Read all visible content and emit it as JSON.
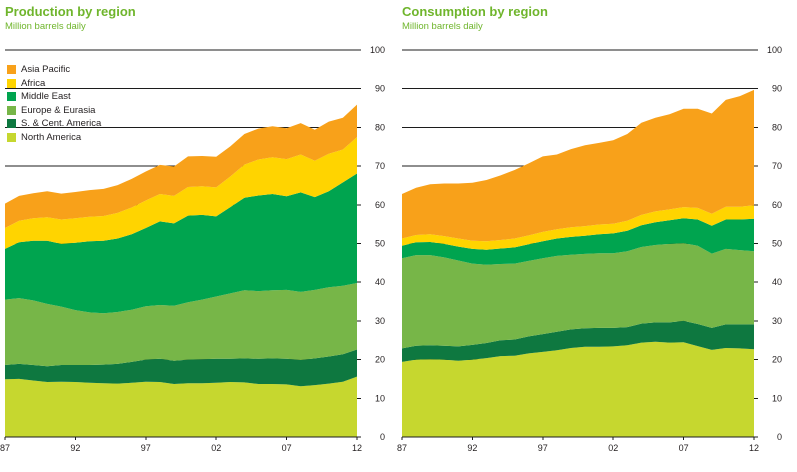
{
  "theme": {
    "title_color": "#6fb52c",
    "grid_color": "#1c1c1c",
    "tick_text_color": "#231f20",
    "background": "#ffffff"
  },
  "regions": [
    {
      "id": "north-america",
      "label": "North America",
      "color": "#c6d72f"
    },
    {
      "id": "s-cent-america",
      "label": "S. & Cent. America",
      "color": "#0e7840"
    },
    {
      "id": "europe-eurasia",
      "label": "Europe & Eurasia",
      "color": "#77b648"
    },
    {
      "id": "middle-east",
      "label": "Middle East",
      "color": "#00a44f"
    },
    {
      "id": "africa",
      "label": "Africa",
      "color": "#ffd400"
    },
    {
      "id": "asia-pacific",
      "label": "Asia Pacific",
      "color": "#f8a11a"
    }
  ],
  "legend": {
    "position": "top-left of production chart only",
    "items": [
      {
        "label": "Asia Pacific",
        "color": "#f8a11a"
      },
      {
        "label": "Africa",
        "color": "#ffd400"
      },
      {
        "label": "Middle East",
        "color": "#00a44f"
      },
      {
        "label": "Europe & Eurasia",
        "color": "#77b648"
      },
      {
        "label": "S. & Cent. America",
        "color": "#0e7840"
      },
      {
        "label": "North America",
        "color": "#c6d72f"
      }
    ]
  },
  "chart_data": [
    {
      "type": "area",
      "stacked": true,
      "title": "Production by region",
      "subtitle": "Million barrels daily",
      "ylim": [
        0,
        100
      ],
      "ytick_step": 10,
      "grid": true,
      "y_axis_side": "right",
      "xtick_years": [
        1987,
        1992,
        1997,
        2002,
        2007,
        2012
      ],
      "xtick_labels": [
        "87",
        "92",
        "97",
        "02",
        "07",
        "12"
      ],
      "x_years": [
        1987,
        1988,
        1989,
        1990,
        1991,
        1992,
        1993,
        1994,
        1995,
        1996,
        1997,
        1998,
        1999,
        2000,
        2001,
        2002,
        2003,
        2004,
        2005,
        2006,
        2007,
        2008,
        2009,
        2010,
        2011,
        2012
      ],
      "stack_order": "bottom to top: North America, S. & Cent. America, Europe & Eurasia, Middle East, Africa, Asia Pacific",
      "series": [
        {
          "name": "North America",
          "values": [
            14.9,
            15.0,
            14.6,
            14.2,
            14.3,
            14.2,
            14.0,
            13.9,
            13.8,
            14.0,
            14.3,
            14.2,
            13.7,
            13.9,
            13.9,
            14.0,
            14.2,
            14.1,
            13.7,
            13.7,
            13.6,
            13.1,
            13.4,
            13.8,
            14.3,
            15.6
          ]
        },
        {
          "name": "S. & Cent. America",
          "values": [
            3.7,
            3.9,
            4.0,
            4.1,
            4.3,
            4.4,
            4.6,
            4.8,
            5.1,
            5.4,
            5.7,
            6.0,
            6.0,
            6.1,
            6.2,
            6.2,
            6.0,
            6.2,
            6.5,
            6.6,
            6.6,
            6.8,
            6.9,
            7.0,
            7.1,
            7.0
          ]
        },
        {
          "name": "Europe & Eurasia",
          "values": [
            16.9,
            17.0,
            16.7,
            16.1,
            15.1,
            14.2,
            13.6,
            13.3,
            13.4,
            13.5,
            13.8,
            13.9,
            14.2,
            14.8,
            15.4,
            16.1,
            16.9,
            17.6,
            17.5,
            17.6,
            17.8,
            17.6,
            17.7,
            17.9,
            17.7,
            17.2
          ]
        },
        {
          "name": "Middle East",
          "values": [
            13.1,
            14.4,
            15.4,
            16.3,
            16.2,
            17.4,
            18.4,
            18.7,
            19.0,
            19.5,
            20.2,
            21.6,
            21.3,
            22.4,
            21.9,
            20.7,
            22.3,
            23.9,
            24.7,
            24.9,
            24.2,
            25.7,
            24.0,
            24.8,
            26.7,
            28.3
          ]
        },
        {
          "name": "Africa",
          "values": [
            5.4,
            5.6,
            5.8,
            6.1,
            6.3,
            6.3,
            6.3,
            6.4,
            6.6,
            6.9,
            7.1,
            7.1,
            7.1,
            7.4,
            7.4,
            7.5,
            7.9,
            8.6,
            9.3,
            9.5,
            9.6,
            9.8,
            9.4,
            9.7,
            8.5,
            9.4
          ]
        },
        {
          "name": "Asia Pacific",
          "values": [
            6.3,
            6.4,
            6.5,
            6.7,
            6.7,
            6.8,
            6.9,
            7.0,
            7.2,
            7.4,
            7.5,
            7.5,
            7.6,
            7.9,
            7.8,
            7.9,
            7.8,
            7.9,
            8.0,
            8.0,
            8.0,
            8.1,
            8.0,
            8.3,
            8.2,
            8.4
          ]
        }
      ]
    },
    {
      "type": "area",
      "stacked": true,
      "title": "Consumption by region",
      "subtitle": "Million barrels daily",
      "ylim": [
        0,
        100
      ],
      "ytick_step": 10,
      "grid": true,
      "y_axis_side": "right",
      "xtick_years": [
        1987,
        1992,
        1997,
        2002,
        2007,
        2012
      ],
      "xtick_labels": [
        "87",
        "92",
        "97",
        "02",
        "07",
        "12"
      ],
      "x_years": [
        1987,
        1988,
        1989,
        1990,
        1991,
        1992,
        1993,
        1994,
        1995,
        1996,
        1997,
        1998,
        1999,
        2000,
        2001,
        2002,
        2003,
        2004,
        2005,
        2006,
        2007,
        2008,
        2009,
        2010,
        2011,
        2012
      ],
      "stack_order": "bottom to top: North America, S. & Cent. America, Europe & Eurasia, Middle East, Africa, Asia Pacific",
      "series": [
        {
          "name": "North America",
          "values": [
            19.4,
            20.0,
            20.1,
            20.0,
            19.7,
            20.0,
            20.4,
            20.9,
            21.0,
            21.6,
            22.0,
            22.4,
            23.0,
            23.3,
            23.3,
            23.4,
            23.7,
            24.4,
            24.6,
            24.4,
            24.5,
            23.5,
            22.5,
            23.0,
            22.9,
            22.7
          ]
        },
        {
          "name": "S. & Cent. America",
          "values": [
            3.5,
            3.6,
            3.6,
            3.6,
            3.7,
            3.8,
            3.9,
            4.1,
            4.2,
            4.4,
            4.6,
            4.8,
            4.8,
            4.8,
            4.9,
            4.8,
            4.7,
            4.9,
            5.0,
            5.2,
            5.5,
            5.7,
            5.7,
            6.1,
            6.2,
            6.4
          ]
        },
        {
          "name": "Europe & Eurasia",
          "values": [
            23.3,
            23.4,
            23.3,
            22.8,
            22.2,
            21.0,
            20.2,
            19.7,
            19.6,
            19.5,
            19.6,
            19.6,
            19.3,
            19.2,
            19.3,
            19.3,
            19.6,
            19.8,
            20.0,
            20.3,
            20.1,
            20.2,
            19.2,
            19.5,
            19.2,
            18.9
          ]
        },
        {
          "name": "Middle East",
          "values": [
            3.2,
            3.3,
            3.4,
            3.5,
            3.6,
            3.8,
            3.9,
            4.0,
            4.2,
            4.3,
            4.4,
            4.5,
            4.6,
            4.7,
            4.9,
            5.1,
            5.3,
            5.6,
            5.9,
            6.1,
            6.4,
            6.8,
            7.2,
            7.6,
            7.9,
            8.4
          ]
        },
        {
          "name": "Africa",
          "values": [
            1.9,
            1.9,
            2.0,
            2.0,
            2.1,
            2.1,
            2.2,
            2.2,
            2.3,
            2.3,
            2.4,
            2.4,
            2.5,
            2.5,
            2.5,
            2.5,
            2.6,
            2.7,
            2.8,
            2.8,
            2.9,
            3.0,
            3.1,
            3.3,
            3.3,
            3.5
          ]
        },
        {
          "name": "Asia Pacific",
          "values": [
            11.5,
            12.2,
            12.9,
            13.6,
            14.2,
            15.0,
            15.8,
            16.7,
            17.7,
            18.6,
            19.5,
            19.3,
            20.2,
            20.9,
            21.1,
            21.6,
            22.4,
            23.8,
            24.2,
            24.6,
            25.4,
            25.6,
            25.9,
            27.6,
            28.6,
            29.8
          ]
        }
      ]
    }
  ]
}
